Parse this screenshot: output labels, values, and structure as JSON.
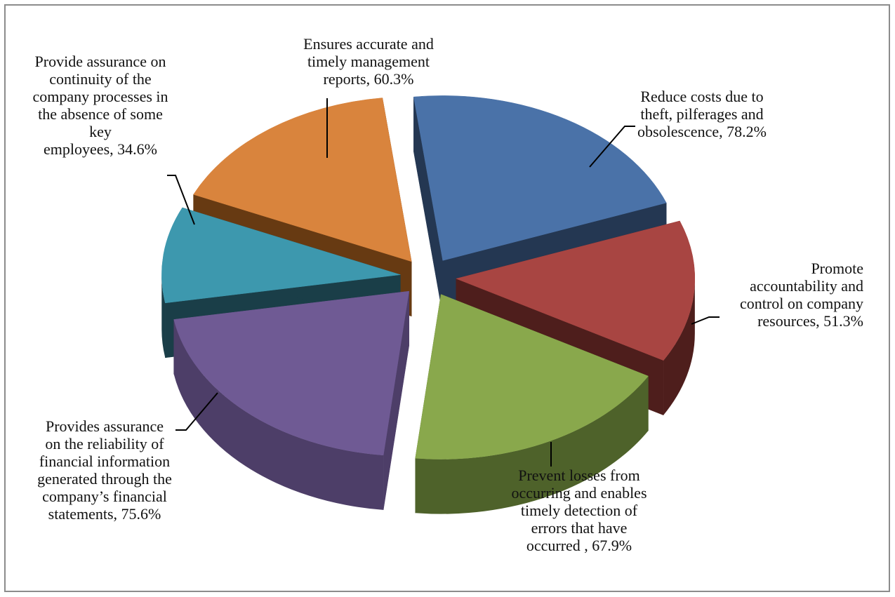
{
  "chart_data": {
    "type": "pie",
    "title": "",
    "style": "3d-exploded",
    "legend": "none",
    "slices": [
      {
        "label": "Reduce costs due to theft, pilferages and obsolescence",
        "value": 78.2,
        "value_label": "78.2%",
        "color": "#4a72a8",
        "side_color": "#243752"
      },
      {
        "label": "Promote accountability and control on company resources",
        "value": 51.3,
        "value_label": "51.3%",
        "color": "#a84542",
        "side_color": "#4e1e1c"
      },
      {
        "label": "Prevent losses from occurring and enables timely detection of errors that have occurred ",
        "value": 67.9,
        "value_label": "67.9%",
        "color": "#89a84c",
        "side_color": "#4e622a"
      },
      {
        "label": "Provides assurance on the reliability of financial information generated through the company’s financial statements",
        "value": 75.6,
        "value_label": "75.6%",
        "color": "#6f5a94",
        "side_color": "#4d3e68"
      },
      {
        "label": "Provide assurance on continuity of the company processes in the absence of some key employees",
        "value": 34.6,
        "value_label": "34.6%",
        "color": "#3d98ae",
        "side_color": "#1a3e48"
      },
      {
        "label": "Ensures accurate and timely management reports",
        "value": 60.3,
        "value_label": "60.3%",
        "color": "#d9843d",
        "side_color": "#673a12"
      }
    ],
    "labels_text": [
      "Reduce costs due to\ntheft, pilferages and\nobsolescence, 78.2%",
      "Promote\naccountability and\ncontrol on company\nresources, 51.3%",
      "Prevent losses from\noccurring and enables\ntimely detection of\nerrors that have\noccurred , 67.9%",
      "Provides assurance\non the reliability of\nfinancial information\ngenerated through the\ncompany’s financial\nstatements, 75.6%",
      "Provide assurance on\ncontinuity of the\ncompany processes in\nthe absence of some\nkey\nemployees, 34.6%",
      "Ensures accurate and\ntimely management\nreports, 60.3%"
    ]
  }
}
